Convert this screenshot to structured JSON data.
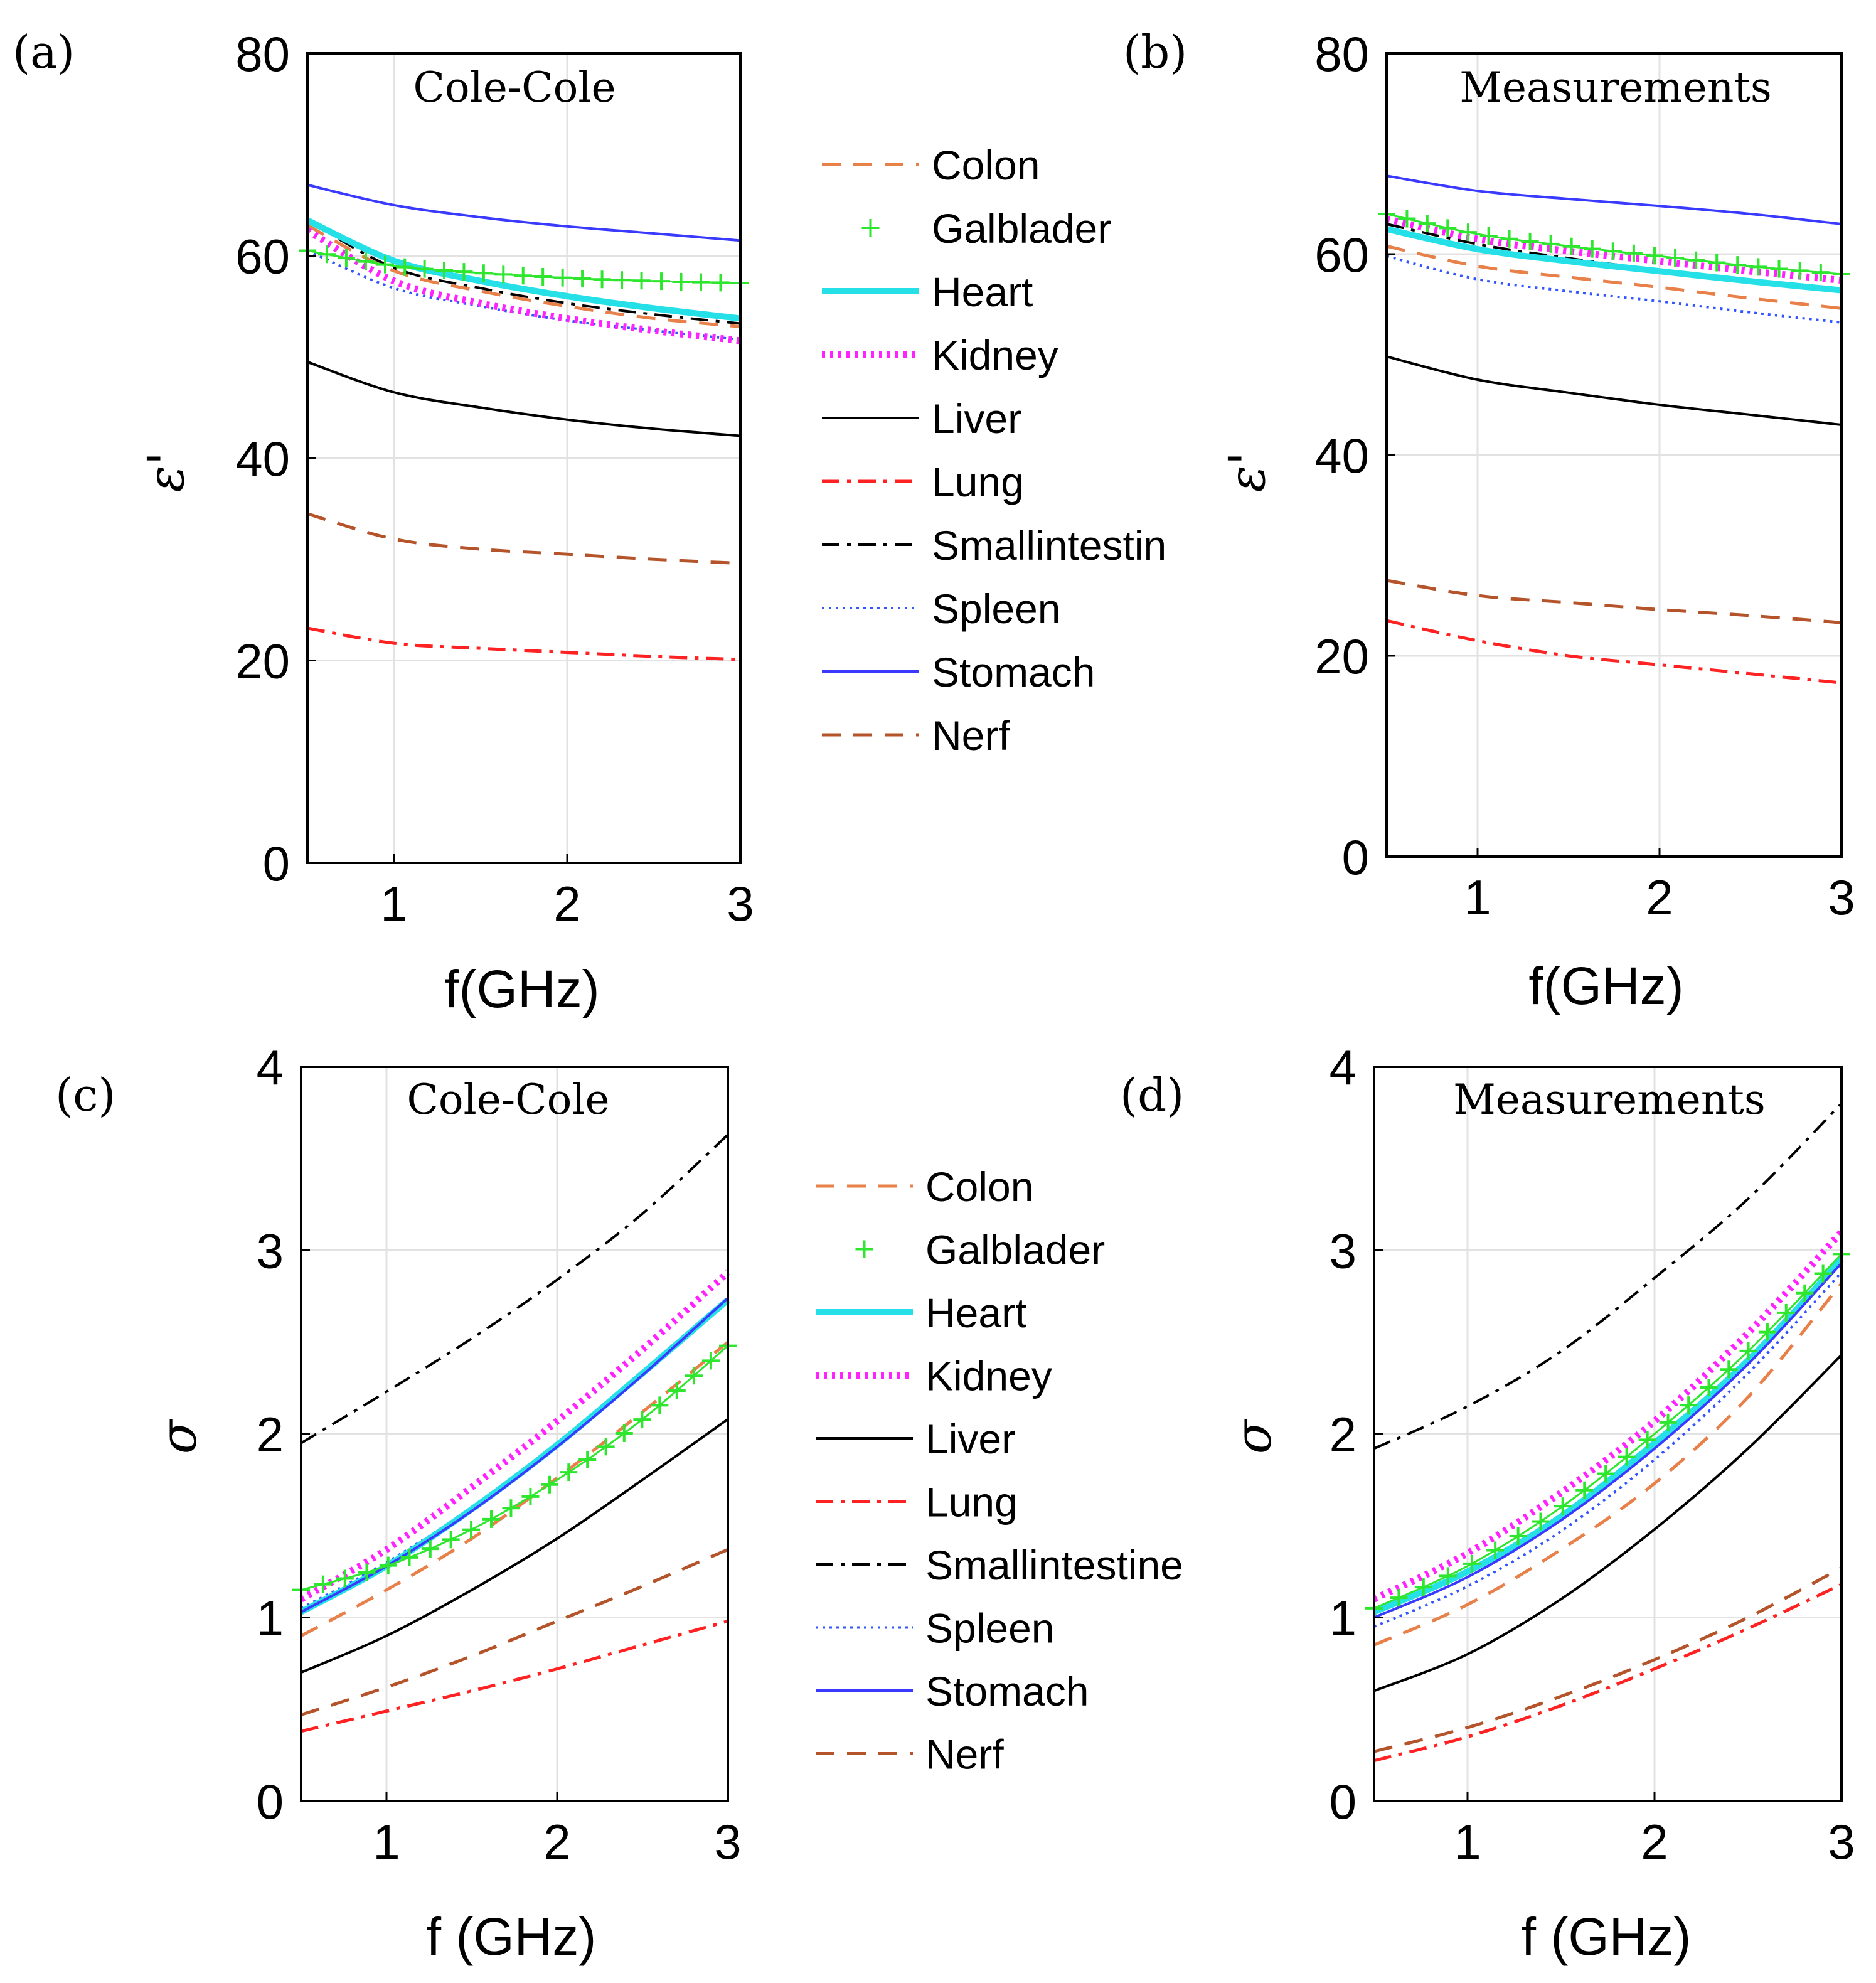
{
  "styles": {
    "Colon": {
      "color": "#e8804a",
      "width": 5,
      "dash": "30,20",
      "marker": null
    },
    "Galblader": {
      "color": "#2ee62e",
      "width": 3,
      "dash": null,
      "marker": "plus"
    },
    "Heart": {
      "color": "#26e0e8",
      "width": 10,
      "dash": null,
      "marker": null
    },
    "Kidney": {
      "color": "#ff22ff",
      "width": 11,
      "dash": "5,8",
      "marker": null
    },
    "Liver": {
      "color": "#000000",
      "width": 4,
      "dash": null,
      "marker": null
    },
    "Lung": {
      "color": "#ff2222",
      "width": 5,
      "dash": "28,12,6,12",
      "marker": null
    },
    "Smallintestine": {
      "color": "#000000",
      "width": 4,
      "dash": "28,12,6,12",
      "marker": null
    },
    "Spleen": {
      "color": "#3355ff",
      "width": 4,
      "dash": "4,7",
      "marker": null
    },
    "Stomach": {
      "color": "#3a3aff",
      "width": 4,
      "dash": null,
      "marker": null
    },
    "Nerf": {
      "color": "#b5542a",
      "width": 5,
      "dash": "30,20",
      "marker": null
    }
  },
  "legends": [
    {
      "entries": [
        {
          "key": "Colon",
          "label": "Colon"
        },
        {
          "key": "Galblader",
          "label": "Galblader"
        },
        {
          "key": "Heart",
          "label": "Heart"
        },
        {
          "key": "Kidney",
          "label": "Kidney"
        },
        {
          "key": "Liver",
          "label": "Liver"
        },
        {
          "key": "Lung",
          "label": "Lung"
        },
        {
          "key": "Smallintestine",
          "label": "Smallintestin"
        },
        {
          "key": "Spleen",
          "label": "Spleen"
        },
        {
          "key": "Stomach",
          "label": "Stomach"
        },
        {
          "key": "Nerf",
          "label": "Nerf"
        }
      ]
    },
    {
      "entries": [
        {
          "key": "Colon",
          "label": "Colon"
        },
        {
          "key": "Galblader",
          "label": "Galblader"
        },
        {
          "key": "Heart",
          "label": "Heart"
        },
        {
          "key": "Kidney",
          "label": "Kidney"
        },
        {
          "key": "Liver",
          "label": "Liver"
        },
        {
          "key": "Lung",
          "label": "Lung"
        },
        {
          "key": "Smallintestine",
          "label": "Smallintestine"
        },
        {
          "key": "Spleen",
          "label": "Spleen"
        },
        {
          "key": "Stomach",
          "label": "Stomach"
        },
        {
          "key": "Nerf",
          "label": "Nerf"
        }
      ]
    }
  ],
  "chart_data": [
    {
      "type": "line",
      "panel": "(a)",
      "title": "Cole-Cole",
      "xlabel": "f(GHz)",
      "ylabel": "ε'",
      "xlim": [
        0.5,
        3
      ],
      "ylim": [
        0,
        80
      ],
      "xticks": [
        1,
        2,
        3
      ],
      "yticks": [
        0,
        20,
        40,
        60,
        80
      ],
      "grid": true,
      "x": [
        0.5,
        1.0,
        1.5,
        2.0,
        2.5,
        3.0
      ],
      "series": [
        {
          "name": "Colon",
          "values": [
            63.0,
            58.5,
            56.5,
            55.0,
            53.8,
            53.0
          ]
        },
        {
          "name": "Galblader",
          "values": [
            60.5,
            59.0,
            58.3,
            57.8,
            57.5,
            57.3
          ]
        },
        {
          "name": "Heart",
          "values": [
            63.5,
            59.5,
            57.5,
            56.0,
            54.8,
            53.8
          ]
        },
        {
          "name": "Kidney",
          "values": [
            62.5,
            57.5,
            55.3,
            53.8,
            52.6,
            51.6
          ]
        },
        {
          "name": "Liver",
          "values": [
            49.5,
            46.5,
            45.0,
            43.8,
            42.9,
            42.2
          ]
        },
        {
          "name": "Lung",
          "values": [
            23.2,
            21.7,
            21.2,
            20.8,
            20.4,
            20.1
          ]
        },
        {
          "name": "Smallintestine",
          "values": [
            63.5,
            58.8,
            56.8,
            55.3,
            54.2,
            53.3
          ]
        },
        {
          "name": "Spleen",
          "values": [
            60.5,
            56.8,
            55.0,
            53.6,
            52.6,
            51.7
          ]
        },
        {
          "name": "Stomach",
          "values": [
            67.0,
            65.0,
            63.8,
            62.9,
            62.2,
            61.5
          ]
        },
        {
          "name": "Nerf",
          "values": [
            34.5,
            32.0,
            31.0,
            30.5,
            30.0,
            29.6
          ]
        }
      ]
    },
    {
      "type": "line",
      "panel": "(b)",
      "title": "Measurements",
      "xlabel": "f(GHz)",
      "ylabel": "ε'",
      "xlim": [
        0.5,
        3
      ],
      "ylim": [
        0,
        80
      ],
      "xticks": [
        1,
        2,
        3
      ],
      "yticks": [
        0,
        20,
        40,
        60,
        80
      ],
      "grid": true,
      "x": [
        0.5,
        1.0,
        1.5,
        2.0,
        2.5,
        3.0
      ],
      "series": [
        {
          "name": "Colon",
          "values": [
            60.8,
            58.8,
            57.7,
            56.7,
            55.6,
            54.6
          ]
        },
        {
          "name": "Galblader",
          "values": [
            64.0,
            62.0,
            60.8,
            59.8,
            58.8,
            58.0
          ]
        },
        {
          "name": "Heart",
          "values": [
            62.5,
            60.5,
            59.3,
            58.3,
            57.3,
            56.4
          ]
        },
        {
          "name": "Kidney",
          "values": [
            63.5,
            61.5,
            60.3,
            59.3,
            58.3,
            57.4
          ]
        },
        {
          "name": "Liver",
          "values": [
            49.8,
            47.5,
            46.2,
            45.0,
            44.0,
            43.0
          ]
        },
        {
          "name": "Lung",
          "values": [
            23.5,
            21.5,
            20.0,
            19.1,
            18.2,
            17.3
          ]
        },
        {
          "name": "Smallintestine",
          "values": [
            63.0,
            61.0,
            59.6,
            58.4,
            57.3,
            56.3
          ]
        },
        {
          "name": "Spleen",
          "values": [
            59.8,
            57.5,
            56.3,
            55.3,
            54.2,
            53.2
          ]
        },
        {
          "name": "Stomach",
          "values": [
            67.8,
            66.3,
            65.5,
            64.8,
            64.0,
            63.0
          ]
        },
        {
          "name": "Nerf",
          "values": [
            27.5,
            26.0,
            25.3,
            24.6,
            24.0,
            23.3
          ]
        }
      ]
    },
    {
      "type": "line",
      "panel": "(c)",
      "title": "Cole-Cole",
      "xlabel": "f (GHz)",
      "ylabel": "σ",
      "xlim": [
        0.5,
        3
      ],
      "ylim": [
        0,
        4
      ],
      "xticks": [
        1,
        2,
        3
      ],
      "yticks": [
        0,
        1,
        2,
        3,
        4
      ],
      "grid": true,
      "x": [
        0.5,
        1.0,
        1.5,
        2.0,
        2.5,
        3.0
      ],
      "series": [
        {
          "name": "Colon",
          "values": [
            0.9,
            1.15,
            1.43,
            1.76,
            2.12,
            2.5
          ]
        },
        {
          "name": "Galblader",
          "values": [
            1.15,
            1.28,
            1.48,
            1.75,
            2.08,
            2.48
          ]
        },
        {
          "name": "Heart",
          "values": [
            1.03,
            1.28,
            1.59,
            1.94,
            2.33,
            2.73
          ]
        },
        {
          "name": "Kidney",
          "values": [
            1.1,
            1.37,
            1.71,
            2.07,
            2.46,
            2.88
          ]
        },
        {
          "name": "Liver",
          "values": [
            0.7,
            0.9,
            1.15,
            1.43,
            1.75,
            2.08
          ]
        },
        {
          "name": "Lung",
          "values": [
            0.38,
            0.49,
            0.6,
            0.72,
            0.85,
            0.98
          ]
        },
        {
          "name": "Smallintestine",
          "values": [
            1.95,
            2.23,
            2.52,
            2.84,
            3.2,
            3.63
          ]
        },
        {
          "name": "Spleen",
          "values": [
            1.05,
            1.3,
            1.6,
            1.95,
            2.32,
            2.72
          ]
        },
        {
          "name": "Stomach",
          "values": [
            1.03,
            1.28,
            1.58,
            1.93,
            2.32,
            2.74
          ]
        },
        {
          "name": "Nerf",
          "values": [
            0.47,
            0.62,
            0.79,
            0.98,
            1.17,
            1.37
          ]
        }
      ]
    },
    {
      "type": "line",
      "panel": "(d)",
      "title": "Measurements",
      "xlabel": "f (GHz)",
      "ylabel": "σ",
      "xlim": [
        0.5,
        3
      ],
      "ylim": [
        0,
        4
      ],
      "xticks": [
        1,
        2,
        3
      ],
      "yticks": [
        0,
        1,
        2,
        3,
        4
      ],
      "grid": true,
      "x": [
        0.5,
        1.0,
        1.5,
        2.0,
        2.5,
        3.0
      ],
      "series": [
        {
          "name": "Colon",
          "values": [
            0.85,
            1.07,
            1.37,
            1.73,
            2.2,
            2.82
          ]
        },
        {
          "name": "Galblader",
          "values": [
            1.05,
            1.28,
            1.6,
            2.0,
            2.45,
            2.98
          ]
        },
        {
          "name": "Heart",
          "values": [
            1.03,
            1.25,
            1.55,
            1.95,
            2.4,
            2.95
          ]
        },
        {
          "name": "Kidney",
          "values": [
            1.1,
            1.35,
            1.68,
            2.07,
            2.55,
            3.1
          ]
        },
        {
          "name": "Liver",
          "values": [
            0.6,
            0.8,
            1.1,
            1.48,
            1.92,
            2.43
          ]
        },
        {
          "name": "Lung",
          "values": [
            0.22,
            0.35,
            0.52,
            0.72,
            0.94,
            1.18
          ]
        },
        {
          "name": "Smallintestine",
          "values": [
            1.92,
            2.15,
            2.45,
            2.85,
            3.28,
            3.8
          ]
        },
        {
          "name": "Spleen",
          "values": [
            0.95,
            1.17,
            1.47,
            1.86,
            2.33,
            2.88
          ]
        },
        {
          "name": "Stomach",
          "values": [
            1.0,
            1.22,
            1.53,
            1.92,
            2.38,
            2.93
          ]
        },
        {
          "name": "Nerf",
          "values": [
            0.27,
            0.4,
            0.57,
            0.77,
            1.0,
            1.27
          ]
        }
      ]
    }
  ]
}
